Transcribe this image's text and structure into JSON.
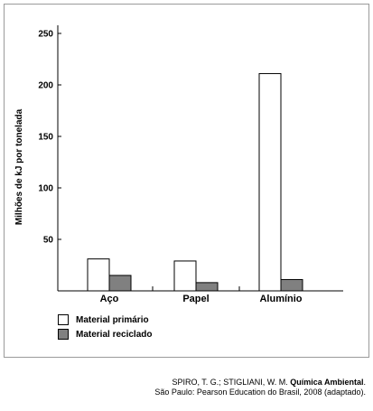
{
  "chart_data": {
    "type": "bar",
    "ylabel": "Milhões de kJ por tonelada",
    "categories": [
      "Aço",
      "Papel",
      "Alumínio"
    ],
    "yticks": [
      50,
      100,
      150,
      200,
      250
    ],
    "ylim": [
      0,
      260
    ],
    "grid": false,
    "series": [
      {
        "name": "Material primário",
        "color": "#ffffff",
        "values": [
          31,
          29,
          211
        ]
      },
      {
        "name": "Material reciclado",
        "color": "#808080",
        "values": [
          15,
          8,
          11
        ]
      }
    ],
    "legend_position": "bottom-left"
  },
  "source": {
    "line1_prefix": "SPIRO, T. G.; STIGLIANI, W. M. ",
    "line1_title": "Química Ambiental",
    "line1_suffix": ".",
    "line2": "São Paulo: Pearson Education do Brasil, 2008 (adaptado)."
  }
}
